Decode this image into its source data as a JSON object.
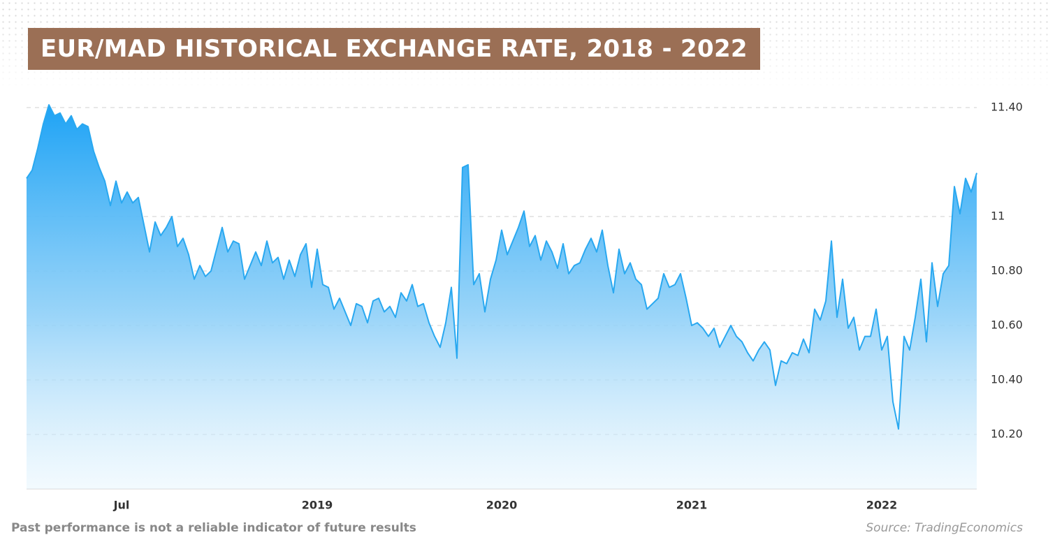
{
  "chart_data": {
    "type": "area",
    "title": "EUR/MAD HISTORICAL EXCHANGE RATE, 2018 - 2022",
    "note": "Past performance is not a reliable indicator of future results",
    "source": "Source: TradingEconomics",
    "color": "#29a8f0",
    "categories": [
      null,
      null,
      null,
      null,
      null,
      null,
      null,
      null,
      null,
      null,
      null,
      null,
      null,
      null,
      null,
      null,
      null,
      "Jul",
      null,
      null,
      null,
      null,
      null,
      null,
      null,
      null,
      null,
      null,
      null,
      null,
      null,
      null,
      null,
      null,
      null,
      null,
      null,
      null,
      null,
      null,
      null,
      null,
      null,
      null,
      null,
      null,
      null,
      null,
      null,
      null,
      null,
      null,
      "2019",
      null,
      null,
      null,
      null,
      null,
      null,
      null,
      null,
      null,
      null,
      null,
      null,
      null,
      null,
      null,
      null,
      null,
      null,
      null,
      null,
      null,
      null,
      null,
      null,
      null,
      null,
      null,
      null,
      null,
      null,
      null,
      null,
      "2020",
      null,
      null,
      null,
      null,
      null,
      null,
      null,
      null,
      null,
      null,
      null,
      null,
      null,
      null,
      null,
      null,
      null,
      null,
      null,
      null,
      null,
      null,
      null,
      null,
      null,
      null,
      null,
      null,
      null,
      null,
      null,
      null,
      null,
      "2021",
      null,
      null,
      null,
      null,
      null,
      null,
      null,
      null,
      null,
      null,
      null,
      null,
      null,
      null,
      null,
      null,
      null,
      null,
      null,
      null,
      null,
      null,
      null,
      null,
      null,
      null,
      null,
      null,
      null,
      null,
      null,
      null,
      null,
      "2022",
      null,
      null,
      null,
      null,
      null,
      null,
      null,
      null,
      null,
      null,
      null,
      null,
      null,
      null,
      null,
      null,
      null
    ],
    "values": [
      11.14,
      11.17,
      11.25,
      11.34,
      11.41,
      11.37,
      11.38,
      11.34,
      11.37,
      11.32,
      11.34,
      11.33,
      11.24,
      11.18,
      11.13,
      11.04,
      11.13,
      11.05,
      11.09,
      11.05,
      11.07,
      10.97,
      10.87,
      10.98,
      10.93,
      10.96,
      11.0,
      10.89,
      10.92,
      10.86,
      10.77,
      10.82,
      10.78,
      10.8,
      10.88,
      10.96,
      10.87,
      10.91,
      10.9,
      10.77,
      10.82,
      10.87,
      10.82,
      10.91,
      10.83,
      10.85,
      10.77,
      10.84,
      10.78,
      10.86,
      10.9,
      10.74,
      10.88,
      10.75,
      10.74,
      10.66,
      10.7,
      10.65,
      10.6,
      10.68,
      10.67,
      10.61,
      10.69,
      10.7,
      10.65,
      10.67,
      10.63,
      10.72,
      10.69,
      10.75,
      10.67,
      10.68,
      10.61,
      10.56,
      10.52,
      10.61,
      10.74,
      10.48,
      11.18,
      11.19,
      10.75,
      10.79,
      10.65,
      10.77,
      10.84,
      10.95,
      10.86,
      10.91,
      10.96,
      11.02,
      10.89,
      10.93,
      10.84,
      10.91,
      10.87,
      10.81,
      10.9,
      10.79,
      10.82,
      10.83,
      10.88,
      10.92,
      10.87,
      10.95,
      10.82,
      10.72,
      10.88,
      10.79,
      10.83,
      10.77,
      10.75,
      10.66,
      10.68,
      10.7,
      10.79,
      10.74,
      10.75,
      10.79,
      10.7,
      10.6,
      10.61,
      10.59,
      10.56,
      10.59,
      10.52,
      10.56,
      10.6,
      10.56,
      10.54,
      10.5,
      10.47,
      10.51,
      10.54,
      10.51,
      10.38,
      10.47,
      10.46,
      10.5,
      10.49,
      10.55,
      10.5,
      10.66,
      10.62,
      10.69,
      10.91,
      10.63,
      10.77,
      10.59,
      10.63,
      10.51,
      10.56,
      10.56,
      10.66,
      10.51,
      10.56,
      10.32,
      10.22,
      10.56,
      10.51,
      10.63,
      10.77,
      10.54,
      10.83,
      10.67,
      10.79,
      10.82,
      11.11,
      11.01,
      11.14,
      11.09,
      11.16
    ],
    "ylim": [
      10.0,
      11.45
    ],
    "yticks": [
      {
        "value": 10.2,
        "label": "10.20"
      },
      {
        "value": 10.4,
        "label": "10.40"
      },
      {
        "value": 10.6,
        "label": "10.60"
      },
      {
        "value": 10.8,
        "label": "10.80"
      },
      11,
      {
        "value": 11.4,
        "label": "11.40"
      }
    ],
    "grid": true
  }
}
